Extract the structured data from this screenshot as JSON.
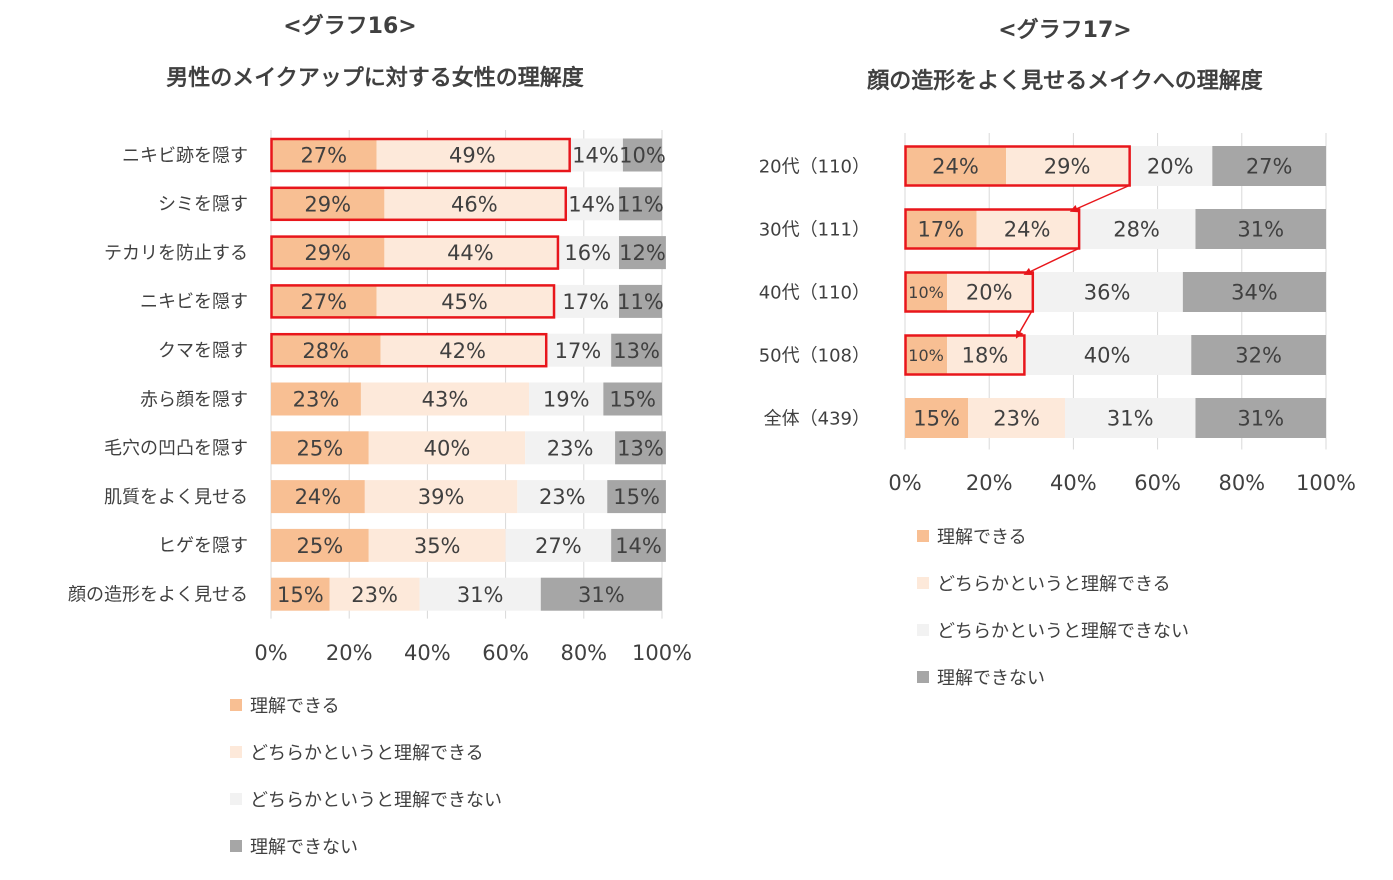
{
  "colors": {
    "understand": "#F8BF93",
    "somewhat_understand": "#FDE9DA",
    "somewhat_not": "#F2F2F2",
    "not_understand": "#A6A6A6",
    "highlight": "#E8161B",
    "grid": "#D9D9D9",
    "text": "#404040"
  },
  "chart16": {
    "heading": "<グラフ16>",
    "title": "男性のメイクアップに対する女性の理解度"
  },
  "chart17": {
    "heading": "<グラフ17>",
    "title": "顔の造形をよく見せるメイクへの理解度"
  },
  "chart_data": [
    {
      "type": "bar",
      "orientation": "horizontal",
      "stacked": true,
      "title": "男性のメイクアップに対する女性の理解度",
      "categories": [
        "ニキビ跡を隠す",
        "シミを隠す",
        "テカリを防止する",
        "ニキビを隠す",
        "クマを隠す",
        "赤ら顔を隠す",
        "毛穴の凹凸を隠す",
        "肌質をよく見せる",
        "ヒゲを隠す",
        "顔の造形をよく見せる"
      ],
      "series": [
        {
          "name": "理解できる",
          "values": [
            27,
            29,
            29,
            27,
            28,
            23,
            25,
            24,
            25,
            15
          ]
        },
        {
          "name": "どちらかというと理解できる",
          "values": [
            49,
            46,
            44,
            45,
            42,
            43,
            40,
            39,
            35,
            23
          ]
        },
        {
          "name": "どちらかというと理解できない",
          "values": [
            14,
            14,
            16,
            17,
            17,
            19,
            23,
            23,
            27,
            31
          ]
        },
        {
          "name": "理解できない",
          "values": [
            10,
            11,
            12,
            11,
            13,
            15,
            13,
            15,
            14,
            31
          ]
        }
      ],
      "x_ticks": [
        "0%",
        "20%",
        "40%",
        "60%",
        "80%",
        "100%"
      ],
      "xlim": [
        0,
        100
      ],
      "highlighted_categories": [
        0,
        1,
        2,
        3,
        4
      ],
      "grid": true,
      "legend_position": "bottom"
    },
    {
      "type": "bar",
      "orientation": "horizontal",
      "stacked": true,
      "title": "顔の造形をよく見せるメイクへの理解度",
      "categories": [
        "20代（110）",
        "30代（111）",
        "40代（110）",
        "50代（108）",
        "全体（439）"
      ],
      "series": [
        {
          "name": "理解できる",
          "values": [
            24,
            17,
            10,
            10,
            15
          ]
        },
        {
          "name": "どちらかというと理解できる",
          "values": [
            29,
            24,
            20,
            18,
            23
          ]
        },
        {
          "name": "どちらかというと理解できない",
          "values": [
            20,
            28,
            36,
            40,
            31
          ]
        },
        {
          "name": "理解できない",
          "values": [
            27,
            31,
            34,
            32,
            31
          ]
        }
      ],
      "x_ticks": [
        "0%",
        "20%",
        "40%",
        "60%",
        "80%",
        "100%"
      ],
      "xlim": [
        0,
        100
      ],
      "highlighted_categories": [
        0,
        1,
        2,
        3
      ],
      "grid": true,
      "legend_position": "bottom"
    }
  ]
}
